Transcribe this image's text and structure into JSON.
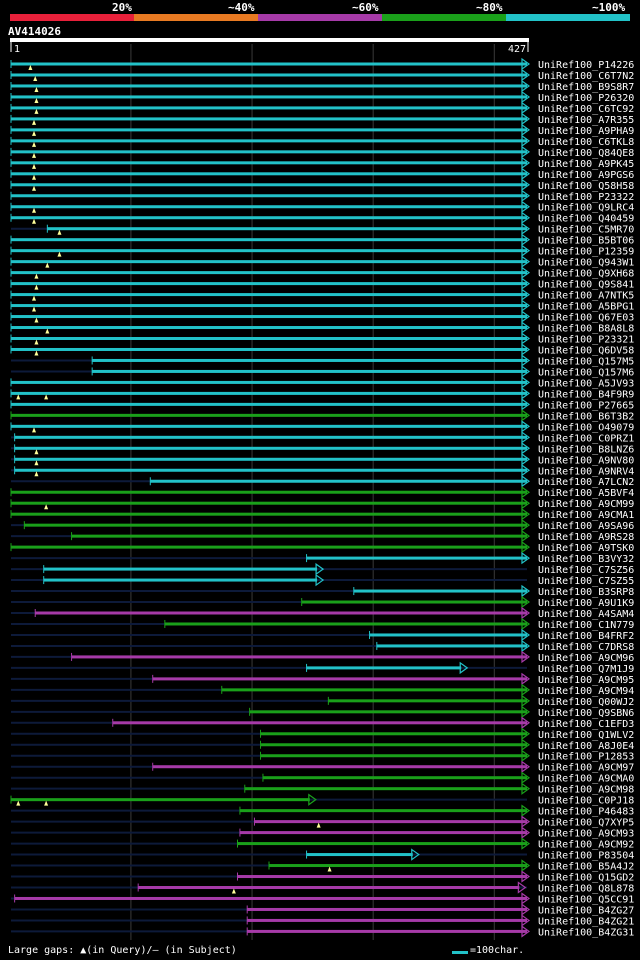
{
  "chart_data": {
    "type": "alignment-overview",
    "query_name": "AV414026",
    "query_start": "1",
    "query_end": "427",
    "query_length": 427,
    "identity_legend": [
      {
        "label": "20%",
        "color": "#e8203a"
      },
      {
        "label": "~40%",
        "color": "#e87a22"
      },
      {
        "label": "~60%",
        "color": "#a63aa8"
      },
      {
        "label": "~80%",
        "color": "#1aa01a"
      },
      {
        "label": "~100%",
        "color": "#22c2c8"
      }
    ],
    "gridlines": [
      100,
      200,
      300,
      400
    ],
    "hits": [
      {
        "name": "UniRef100_P14226",
        "start": 1,
        "end": 427,
        "identity": 100,
        "marks": [
          17
        ]
      },
      {
        "name": "UniRef100_C6T7N2",
        "start": 1,
        "end": 427,
        "identity": 100,
        "marks": [
          21
        ]
      },
      {
        "name": "UniRef100_B9S8R7",
        "start": 1,
        "end": 427,
        "identity": 100,
        "marks": [
          22
        ]
      },
      {
        "name": "UniRef100_P26320",
        "start": 1,
        "end": 427,
        "identity": 100,
        "marks": [
          22
        ]
      },
      {
        "name": "UniRef100_C6TC92",
        "start": 1,
        "end": 427,
        "identity": 100,
        "marks": [
          22
        ]
      },
      {
        "name": "UniRef100_A7R355",
        "start": 1,
        "end": 427,
        "identity": 100,
        "marks": [
          20
        ]
      },
      {
        "name": "UniRef100_A9PHA9",
        "start": 1,
        "end": 427,
        "identity": 100,
        "marks": [
          20
        ]
      },
      {
        "name": "UniRef100_C6TKL8",
        "start": 1,
        "end": 427,
        "identity": 100,
        "marks": [
          20
        ]
      },
      {
        "name": "UniRef100_Q84QE8",
        "start": 1,
        "end": 427,
        "identity": 100,
        "marks": [
          20
        ]
      },
      {
        "name": "UniRef100_A9PK45",
        "start": 1,
        "end": 427,
        "identity": 100,
        "marks": [
          20
        ]
      },
      {
        "name": "UniRef100_A9PGS6",
        "start": 1,
        "end": 427,
        "identity": 100,
        "marks": [
          20
        ]
      },
      {
        "name": "UniRef100_Q58H58",
        "start": 1,
        "end": 427,
        "identity": 100,
        "marks": [
          20
        ]
      },
      {
        "name": "UniRef100_P23322",
        "start": 1,
        "end": 427,
        "identity": 100,
        "marks": []
      },
      {
        "name": "UniRef100_Q9LRC4",
        "start": 1,
        "end": 427,
        "identity": 100,
        "marks": [
          20
        ]
      },
      {
        "name": "UniRef100_Q40459",
        "start": 1,
        "end": 427,
        "identity": 100,
        "marks": [
          20
        ]
      },
      {
        "name": "UniRef100_C5MR70",
        "start": 31,
        "end": 427,
        "identity": 100,
        "marks": [
          41
        ]
      },
      {
        "name": "UniRef100_B5BT06",
        "start": 1,
        "end": 427,
        "identity": 100,
        "marks": []
      },
      {
        "name": "UniRef100_P12359",
        "start": 1,
        "end": 427,
        "identity": 100,
        "marks": [
          41
        ]
      },
      {
        "name": "UniRef100_Q943W1",
        "start": 1,
        "end": 427,
        "identity": 100,
        "marks": [
          31
        ]
      },
      {
        "name": "UniRef100_Q9XH68",
        "start": 1,
        "end": 427,
        "identity": 100,
        "marks": [
          22
        ]
      },
      {
        "name": "UniRef100_Q9S841",
        "start": 1,
        "end": 427,
        "identity": 100,
        "marks": [
          22
        ]
      },
      {
        "name": "UniRef100_A7NTK5",
        "start": 1,
        "end": 427,
        "identity": 100,
        "marks": [
          20
        ]
      },
      {
        "name": "UniRef100_A5BPG1",
        "start": 1,
        "end": 427,
        "identity": 100,
        "marks": [
          20
        ]
      },
      {
        "name": "UniRef100_Q67E03",
        "start": 1,
        "end": 427,
        "identity": 100,
        "marks": [
          22
        ]
      },
      {
        "name": "UniRef100_B8A8L8",
        "start": 1,
        "end": 427,
        "identity": 100,
        "marks": [
          31
        ]
      },
      {
        "name": "UniRef100_P23321",
        "start": 1,
        "end": 427,
        "identity": 100,
        "marks": [
          22
        ]
      },
      {
        "name": "UniRef100_Q6DV58",
        "start": 1,
        "end": 427,
        "identity": 100,
        "marks": [
          22
        ]
      },
      {
        "name": "UniRef100_Q157M5",
        "start": 68,
        "end": 427,
        "identity": 100,
        "marks": []
      },
      {
        "name": "UniRef100_Q157M6",
        "start": 68,
        "end": 427,
        "identity": 100,
        "marks": []
      },
      {
        "name": "UniRef100_A5JV93",
        "start": 1,
        "end": 427,
        "identity": 100,
        "marks": []
      },
      {
        "name": "UniRef100_B4F9R9",
        "start": 1,
        "end": 427,
        "identity": 100,
        "marks": [
          7,
          30
        ]
      },
      {
        "name": "UniRef100_P27665",
        "start": 1,
        "end": 427,
        "identity": 100,
        "marks": []
      },
      {
        "name": "UniRef100_B6T3B2",
        "start": 1,
        "end": 427,
        "identity": 80,
        "marks": []
      },
      {
        "name": "UniRef100_O49079",
        "start": 1,
        "end": 427,
        "identity": 100,
        "marks": [
          20
        ]
      },
      {
        "name": "UniRef100_C0PRZ1",
        "start": 4,
        "end": 427,
        "identity": 100,
        "marks": []
      },
      {
        "name": "UniRef100_B8LNZ6",
        "start": 4,
        "end": 427,
        "identity": 100,
        "marks": [
          22
        ]
      },
      {
        "name": "UniRef100_A9NV80",
        "start": 4,
        "end": 427,
        "identity": 100,
        "marks": [
          22
        ]
      },
      {
        "name": "UniRef100_A9NRV4",
        "start": 4,
        "end": 427,
        "identity": 100,
        "marks": [
          22
        ]
      },
      {
        "name": "UniRef100_A7LCN2",
        "start": 116,
        "end": 427,
        "identity": 100,
        "marks": []
      },
      {
        "name": "UniRef100_A5BVF4",
        "start": 1,
        "end": 427,
        "identity": 80,
        "marks": []
      },
      {
        "name": "UniRef100_A9CM99",
        "start": 1,
        "end": 427,
        "identity": 80,
        "marks": [
          30
        ]
      },
      {
        "name": "UniRef100_A9CMA1",
        "start": 1,
        "end": 427,
        "identity": 80,
        "marks": []
      },
      {
        "name": "UniRef100_A9SA96",
        "start": 12,
        "end": 427,
        "identity": 80,
        "marks": []
      },
      {
        "name": "UniRef100_A9RS28",
        "start": 51,
        "end": 427,
        "identity": 80,
        "marks": []
      },
      {
        "name": "UniRef100_A9TSK0",
        "start": 1,
        "end": 427,
        "identity": 80,
        "marks": []
      },
      {
        "name": "UniRef100_B3VY32",
        "start": 245,
        "end": 427,
        "identity": 100,
        "marks": []
      },
      {
        "name": "UniRef100_C7SZ56",
        "start": 28,
        "end": 257,
        "identity": 100,
        "marks": []
      },
      {
        "name": "UniRef100_C7SZ55",
        "start": 28,
        "end": 257,
        "identity": 100,
        "marks": []
      },
      {
        "name": "UniRef100_B3SRP8",
        "start": 284,
        "end": 427,
        "identity": 100,
        "marks": []
      },
      {
        "name": "UniRef100_A9U1K9",
        "start": 241,
        "end": 427,
        "identity": 80,
        "marks": []
      },
      {
        "name": "UniRef100_A4SAM4",
        "start": 21,
        "end": 427,
        "identity": 60,
        "marks": []
      },
      {
        "name": "UniRef100_C1N779",
        "start": 128,
        "end": 427,
        "identity": 80,
        "marks": []
      },
      {
        "name": "UniRef100_B4FRF2",
        "start": 297,
        "end": 427,
        "identity": 100,
        "marks": []
      },
      {
        "name": "UniRef100_C7DRS8",
        "start": 303,
        "end": 427,
        "identity": 100,
        "marks": []
      },
      {
        "name": "UniRef100_A9CM96",
        "start": 51,
        "end": 427,
        "identity": 60,
        "marks": []
      },
      {
        "name": "UniRef100_Q7M1J9",
        "start": 245,
        "end": 376,
        "identity": 100,
        "marks": []
      },
      {
        "name": "UniRef100_A9CM95",
        "start": 118,
        "end": 427,
        "identity": 60,
        "marks": []
      },
      {
        "name": "UniRef100_A9CM94",
        "start": 175,
        "end": 427,
        "identity": 80,
        "marks": []
      },
      {
        "name": "UniRef100_Q00WJ2",
        "start": 263,
        "end": 427,
        "identity": 80,
        "marks": []
      },
      {
        "name": "UniRef100_Q9SBN6",
        "start": 198,
        "end": 427,
        "identity": 80,
        "marks": []
      },
      {
        "name": "UniRef100_C1EFD3",
        "start": 85,
        "end": 427,
        "identity": 60,
        "marks": []
      },
      {
        "name": "UniRef100_Q1WLV2",
        "start": 207,
        "end": 427,
        "identity": 80,
        "marks": []
      },
      {
        "name": "UniRef100_A8J0E4",
        "start": 207,
        "end": 427,
        "identity": 80,
        "marks": []
      },
      {
        "name": "UniRef100_P12853",
        "start": 207,
        "end": 427,
        "identity": 80,
        "marks": []
      },
      {
        "name": "UniRef100_A9CM97",
        "start": 118,
        "end": 427,
        "identity": 60,
        "marks": []
      },
      {
        "name": "UniRef100_A9CMA0",
        "start": 209,
        "end": 427,
        "identity": 80,
        "marks": []
      },
      {
        "name": "UniRef100_A9CM98",
        "start": 194,
        "end": 427,
        "identity": 80,
        "marks": []
      },
      {
        "name": "UniRef100_C0PJ18",
        "start": 1,
        "end": 251,
        "identity": 80,
        "marks": [
          7,
          30
        ]
      },
      {
        "name": "UniRef100_P46483",
        "start": 190,
        "end": 427,
        "identity": 80,
        "marks": []
      },
      {
        "name": "UniRef100_Q7XYP5",
        "start": 202,
        "end": 427,
        "identity": 60,
        "marks": [
          255
        ]
      },
      {
        "name": "UniRef100_A9CM93",
        "start": 190,
        "end": 427,
        "identity": 60,
        "marks": []
      },
      {
        "name": "UniRef100_A9CM92",
        "start": 188,
        "end": 427,
        "identity": 80,
        "marks": []
      },
      {
        "name": "UniRef100_P83504",
        "start": 245,
        "end": 336,
        "identity": 100,
        "marks": []
      },
      {
        "name": "UniRef100_B5A4J2",
        "start": 214,
        "end": 427,
        "identity": 80,
        "marks": [
          264
        ]
      },
      {
        "name": "UniRef100_Q15GD2",
        "start": 188,
        "end": 427,
        "identity": 60,
        "marks": []
      },
      {
        "name": "UniRef100_Q8L878",
        "start": 106,
        "end": 424,
        "identity": 60,
        "marks": [
          185
        ]
      },
      {
        "name": "UniRef100_Q5CC91",
        "start": 4,
        "end": 427,
        "identity": 60,
        "marks": []
      },
      {
        "name": "UniRef100_B4ZG27",
        "start": 196,
        "end": 427,
        "identity": 60,
        "marks": []
      },
      {
        "name": "UniRef100_B4ZG21",
        "start": 196,
        "end": 427,
        "identity": 60,
        "marks": []
      },
      {
        "name": "UniRef100_B4ZG31",
        "start": 196,
        "end": 427,
        "identity": 60,
        "marks": []
      }
    ],
    "footer_left": "Large gaps: ▲(in Query)/— (in Subject)",
    "footer_right": "=100char."
  }
}
